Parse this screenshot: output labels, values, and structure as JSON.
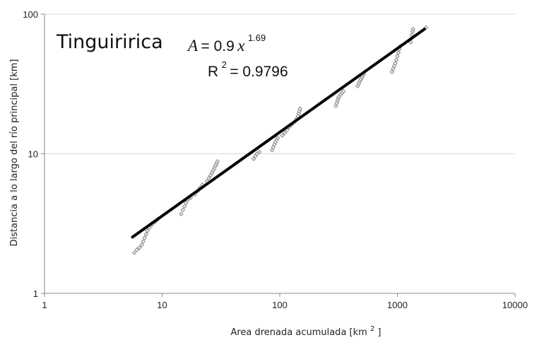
{
  "chart_data": {
    "type": "scatter",
    "site_name": "Tinguiririca",
    "xlabel": "Area drenada acumulada [km",
    "xlabel_sup": "2",
    "xlabel_end": "]",
    "ylabel": "Distancia a lo largo del río principal [km]",
    "x_scale": "log",
    "y_scale": "log",
    "xlim": [
      1,
      10000
    ],
    "ylim": [
      1,
      100
    ],
    "x_ticks": [
      "1",
      "10",
      "100",
      "1000",
      "10000"
    ],
    "y_ticks": [
      "1",
      "10",
      "100"
    ],
    "grid": {
      "horizontal": true,
      "vertical": false
    },
    "equation": {
      "lhs": "A",
      "mid": "= 0.9",
      "var": "x",
      "exponent": "1.69",
      "r2_label": "R",
      "r2_sup": "2",
      "r2_value": " = 0.9796"
    },
    "fit": {
      "coef": 0.9,
      "exponent": 0.6,
      "x_range": [
        5.6,
        1700
      ]
    },
    "colors": {
      "points": "#8a8a8a",
      "fit": "#000000",
      "grid": "#d9d9d9",
      "axis": "#888888"
    },
    "points": [
      [
        5.8,
        1.95
      ],
      [
        6.1,
        2.05
      ],
      [
        6.4,
        2.12
      ],
      [
        6.7,
        2.22
      ],
      [
        6.9,
        2.35
      ],
      [
        7.1,
        2.5
      ],
      [
        7.3,
        2.65
      ],
      [
        7.5,
        2.8
      ],
      [
        7.8,
        2.95
      ],
      [
        8.2,
        3.1
      ],
      [
        8.7,
        3.25
      ],
      [
        9.2,
        3.4
      ],
      [
        14.5,
        3.7
      ],
      [
        15.0,
        3.95
      ],
      [
        15.5,
        4.2
      ],
      [
        16.0,
        4.45
      ],
      [
        16.6,
        4.7
      ],
      [
        17.5,
        4.85
      ],
      [
        19.0,
        5.1
      ],
      [
        20.0,
        5.4
      ],
      [
        21.0,
        5.7
      ],
      [
        22.0,
        6.0
      ],
      [
        24.0,
        6.35
      ],
      [
        25.0,
        6.7
      ],
      [
        25.8,
        7.0
      ],
      [
        26.5,
        7.3
      ],
      [
        27.2,
        7.6
      ],
      [
        27.8,
        7.9
      ],
      [
        28.4,
        8.2
      ],
      [
        29.0,
        8.5
      ],
      [
        29.5,
        8.8
      ],
      [
        60.0,
        9.2
      ],
      [
        62.0,
        9.6
      ],
      [
        64.0,
        10.0
      ],
      [
        67.0,
        10.3
      ],
      [
        86.0,
        10.6
      ],
      [
        88.0,
        11.1
      ],
      [
        90.0,
        11.6
      ],
      [
        92.0,
        12.1
      ],
      [
        94.0,
        12.6
      ],
      [
        96.0,
        13.0
      ],
      [
        105.0,
        13.5
      ],
      [
        110.0,
        14.1
      ],
      [
        115.0,
        14.8
      ],
      [
        120.0,
        15.5
      ],
      [
        125.0,
        16.1
      ],
      [
        130.0,
        16.6
      ],
      [
        136.0,
        17.2
      ],
      [
        140.0,
        17.9
      ],
      [
        143.0,
        18.6
      ],
      [
        145.0,
        19.4
      ],
      [
        147.0,
        20.2
      ],
      [
        149.0,
        21.0
      ],
      [
        300.0,
        22.0
      ],
      [
        305.0,
        23.0
      ],
      [
        310.0,
        24.0
      ],
      [
        315.0,
        25.0
      ],
      [
        320.0,
        25.8
      ],
      [
        330.0,
        26.6
      ],
      [
        340.0,
        27.4
      ],
      [
        348.0,
        28.0
      ],
      [
        460.0,
        30.5
      ],
      [
        470.0,
        31.8
      ],
      [
        480.0,
        33.0
      ],
      [
        490.0,
        34.2
      ],
      [
        500.0,
        35.3
      ],
      [
        510.0,
        36.4
      ],
      [
        520.0,
        37.5
      ],
      [
        900.0,
        38.5
      ],
      [
        920.0,
        40.5
      ],
      [
        940.0,
        42.5
      ],
      [
        960.0,
        44.5
      ],
      [
        980.0,
        47.0
      ],
      [
        1000.0,
        50.0
      ],
      [
        1020.0,
        53.0
      ],
      [
        1040.0,
        56.0
      ],
      [
        1060.0,
        59.0
      ],
      [
        1300.0,
        63.0
      ],
      [
        1315.0,
        67.0
      ],
      [
        1330.0,
        71.0
      ],
      [
        1345.0,
        75.0
      ],
      [
        1360.0,
        78.0
      ],
      [
        1750.0,
        80.0
      ]
    ]
  }
}
